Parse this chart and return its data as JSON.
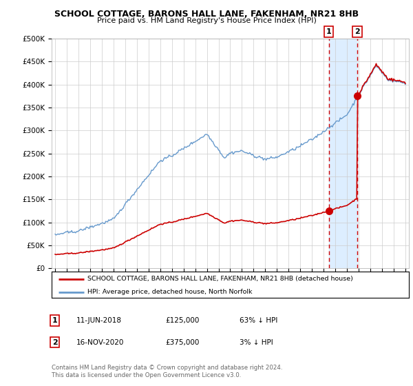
{
  "title": "SCHOOL COTTAGE, BARONS HALL LANE, FAKENHAM, NR21 8HB",
  "subtitle": "Price paid vs. HM Land Registry's House Price Index (HPI)",
  "legend_line1": "SCHOOL COTTAGE, BARONS HALL LANE, FAKENHAM, NR21 8HB (detached house)",
  "legend_line2": "HPI: Average price, detached house, North Norfolk",
  "annotation1_label": "1",
  "annotation1_date": "11-JUN-2018",
  "annotation1_price": "£125,000",
  "annotation1_hpi": "63% ↓ HPI",
  "annotation2_label": "2",
  "annotation2_date": "16-NOV-2020",
  "annotation2_price": "£375,000",
  "annotation2_hpi": "3% ↓ HPI",
  "footer": "Contains HM Land Registry data © Crown copyright and database right 2024.\nThis data is licensed under the Open Government Licence v3.0.",
  "hpi_color": "#6699cc",
  "price_color": "#cc0000",
  "background_color": "#ffffff",
  "grid_color": "#cccccc",
  "ylim": [
    0,
    500000
  ],
  "yticks": [
    0,
    50000,
    100000,
    150000,
    200000,
    250000,
    300000,
    350000,
    400000,
    450000,
    500000
  ],
  "xlim_start": 1994.7,
  "xlim_end": 2025.3,
  "transaction1_x": 2018.44,
  "transaction1_y": 125000,
  "transaction2_x": 2020.88,
  "transaction2_y": 375000,
  "shade_color": "#ddeeff"
}
